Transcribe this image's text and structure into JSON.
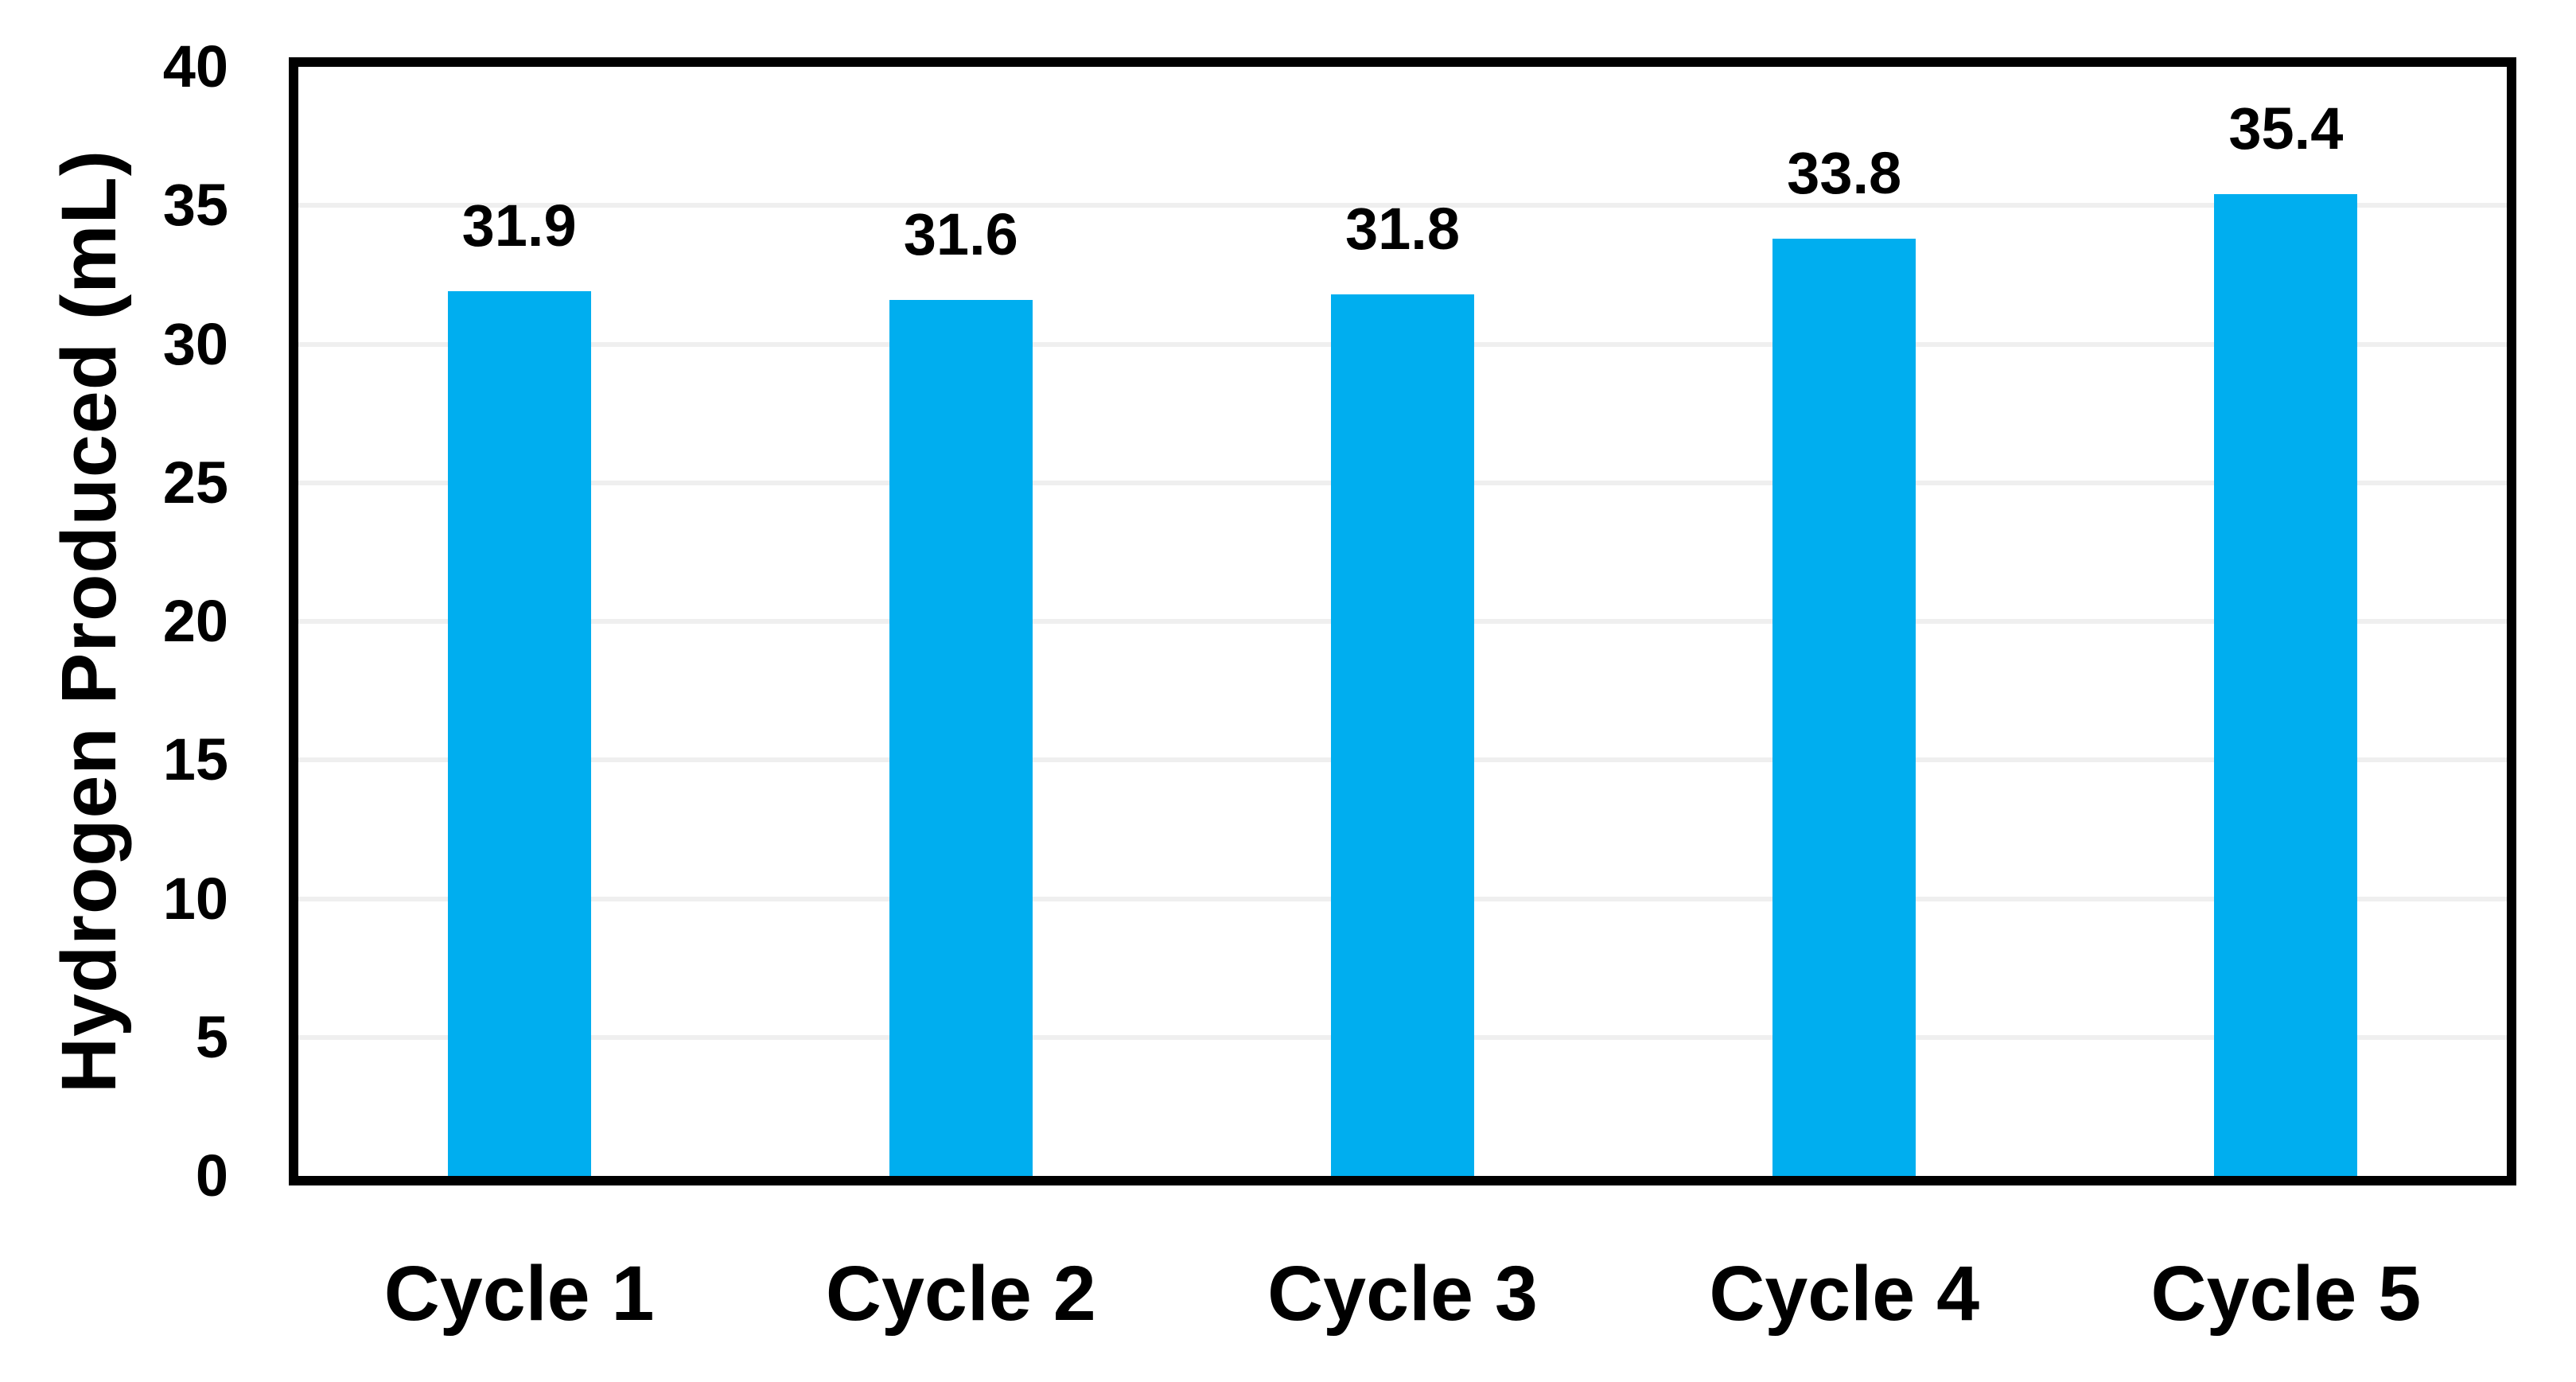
{
  "chart_data": {
    "type": "bar",
    "title": "",
    "categories": [
      "Cycle 1",
      "Cycle 2",
      "Cycle 3",
      "Cycle 4",
      "Cycle 5"
    ],
    "values": [
      31.9,
      31.6,
      31.8,
      33.8,
      35.4
    ],
    "data_labels": [
      "31.9",
      "31.6",
      "31.8",
      "33.8",
      "35.4"
    ],
    "xlabel": "",
    "ylabel": "Hydrogen Produced (mL)",
    "ylim": [
      0,
      40
    ],
    "ytick_interval": 5,
    "yticks": [
      "0",
      "5",
      "10",
      "15",
      "20",
      "25",
      "30",
      "35",
      "40"
    ],
    "grid": "horizontal",
    "legend": "none",
    "colors": {
      "bar": "#00AEEF",
      "gridline": "#EFEFEF",
      "axis_box": "#000000",
      "text": "#000000",
      "background": "#FFFFFF"
    }
  }
}
